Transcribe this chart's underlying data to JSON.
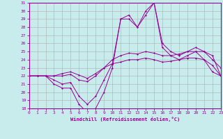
{
  "xlabel": "Windchill (Refroidissement éolien,°C)",
  "bg_color": "#c8ecec",
  "line_color": "#990099",
  "grid_color": "#b0b0b0",
  "x": [
    0,
    1,
    2,
    3,
    4,
    5,
    6,
    7,
    8,
    9,
    10,
    11,
    12,
    13,
    14,
    15,
    16,
    17,
    18,
    19,
    20,
    21,
    22,
    23
  ],
  "line1": [
    22,
    22,
    22,
    21,
    20.5,
    20.5,
    18.5,
    17.5,
    18,
    20,
    23,
    29,
    29,
    28,
    29.5,
    31,
    25.5,
    24.5,
    24,
    24.5,
    25,
    24,
    22.5,
    22
  ],
  "line2": [
    22,
    22,
    22,
    21.5,
    21,
    21.2,
    19.5,
    18.5,
    19.5,
    21.5,
    23.5,
    29,
    29.5,
    28,
    30,
    31,
    26,
    25,
    24.5,
    25,
    25.5,
    25,
    24,
    23
  ],
  "line3": [
    22,
    22,
    22,
    22,
    22,
    22.2,
    21.5,
    21.3,
    22,
    23,
    24,
    24.5,
    24.8,
    24.7,
    25,
    24.8,
    24.5,
    24.5,
    24.7,
    25,
    25,
    25,
    24.5,
    22
  ],
  "line4": [
    22,
    22,
    22,
    22,
    22.3,
    22.5,
    22.1,
    21.7,
    22.3,
    23,
    23.5,
    23.7,
    24,
    24,
    24.2,
    24,
    23.7,
    23.8,
    24,
    24.2,
    24.2,
    24,
    23.3,
    22
  ],
  "ylim": [
    18,
    31
  ],
  "xlim": [
    0,
    23
  ],
  "yticks": [
    18,
    19,
    20,
    21,
    22,
    23,
    24,
    25,
    26,
    27,
    28,
    29,
    30,
    31
  ],
  "xticks": [
    0,
    1,
    2,
    3,
    4,
    5,
    6,
    7,
    8,
    9,
    10,
    11,
    12,
    13,
    14,
    15,
    16,
    17,
    18,
    19,
    20,
    21,
    22,
    23
  ]
}
